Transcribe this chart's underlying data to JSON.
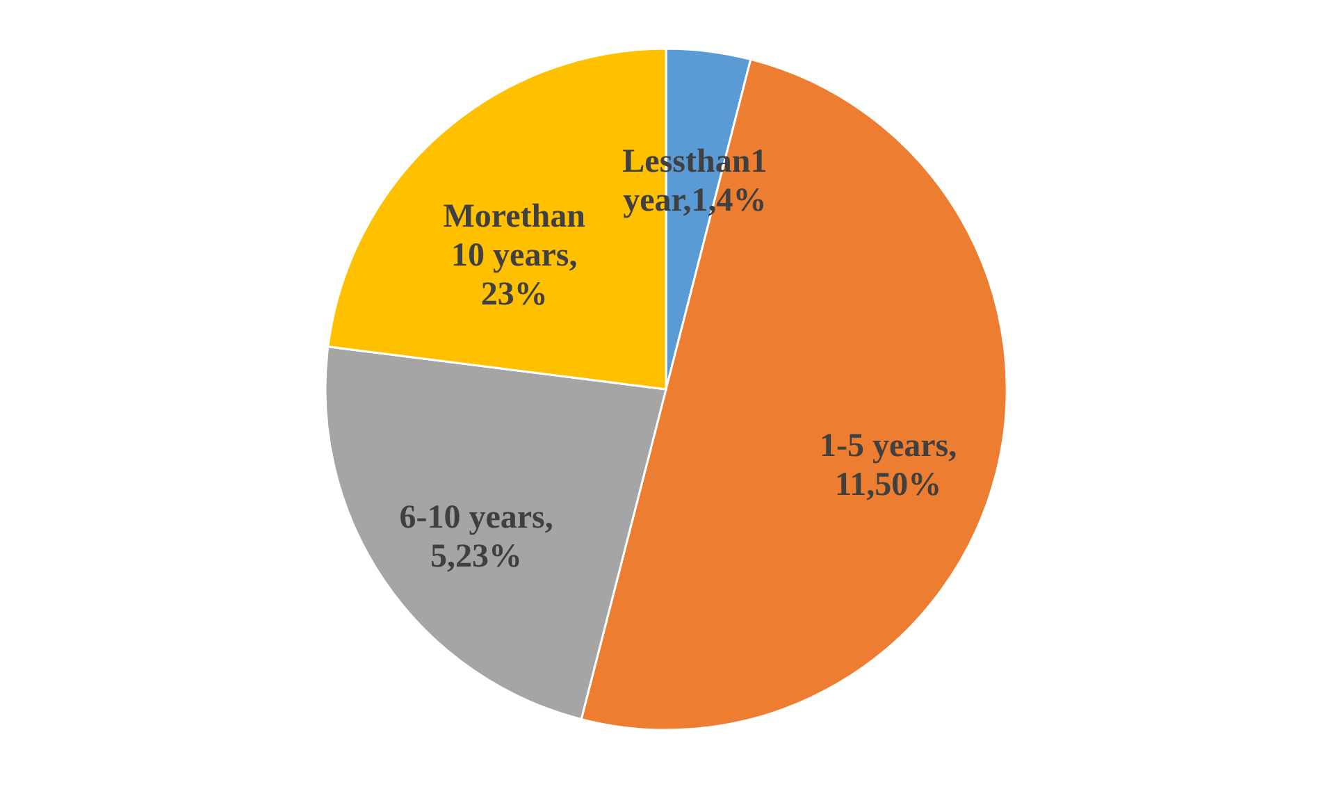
{
  "chart_data": {
    "type": "pie",
    "categories": [
      "Lessthan1\nyear,1,4%",
      "1-5 years,\n11,50%",
      "6-10 years,\n5,23%",
      "Morethan\n10 years,\n23%"
    ],
    "values": [
      4,
      50,
      23,
      23
    ],
    "colors": [
      "#5b9bd5",
      "#ed7d31",
      "#a5a5a5",
      "#ffc000"
    ],
    "legend": false
  }
}
